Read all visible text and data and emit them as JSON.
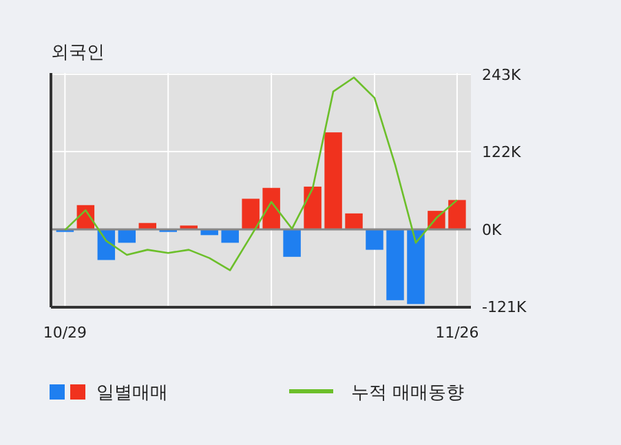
{
  "chart_data": {
    "type": "bar",
    "title": "외국인",
    "categories": [
      "10/29",
      null,
      null,
      null,
      null,
      null,
      null,
      null,
      null,
      null,
      null,
      null,
      null,
      null,
      null,
      null,
      null,
      null,
      null,
      "11/26"
    ],
    "series": [
      {
        "name": "일별매매",
        "values": [
          -4,
          38,
          -48,
          -21,
          10,
          -4,
          6,
          -9,
          -21,
          48,
          65,
          -43,
          67,
          152,
          25,
          -32,
          -111,
          -117,
          29,
          46
        ],
        "colors": [
          "#1f7ff0",
          "#f0321e",
          "#1f7ff0",
          "#1f7ff0",
          "#f0321e",
          "#1f7ff0",
          "#f0321e",
          "#1f7ff0",
          "#1f7ff0",
          "#f0321e",
          "#f0321e",
          "#1f7ff0",
          "#f0321e",
          "#f0321e",
          "#f0321e",
          "#1f7ff0",
          "#1f7ff0",
          "#1f7ff0",
          "#f0321e",
          "#f0321e"
        ]
      },
      {
        "name": "누적 매매동향",
        "type": "line",
        "color": "#6cbf2a",
        "values": [
          -1,
          30,
          -18,
          -40,
          -32,
          -37,
          -32,
          -45,
          -64,
          -11,
          43,
          1,
          64,
          216,
          238,
          206,
          101,
          -21,
          18,
          46
        ]
      }
    ],
    "ylim": [
      -122,
      245
    ],
    "yticks": [
      {
        "value": 243,
        "label": "243K"
      },
      {
        "value": 122,
        "label": "122K"
      },
      {
        "value": 0,
        "label": "0K"
      },
      {
        "value": -121,
        "label": "-121K"
      }
    ],
    "grid": true,
    "legend": "bottom"
  }
}
